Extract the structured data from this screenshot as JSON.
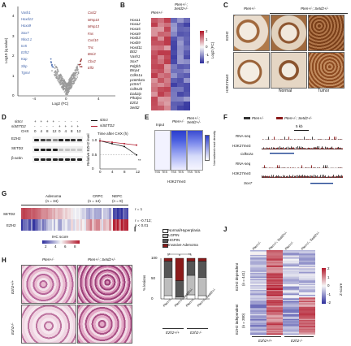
{
  "panels": [
    "A",
    "B",
    "C",
    "D",
    "E",
    "F",
    "G",
    "H",
    "I",
    "J"
  ],
  "A": {
    "ylabel": "Log10 (q value)",
    "xlabel": "Log2 (FC)",
    "yticks": [
      "0",
      "1",
      "2",
      "3",
      "4"
    ],
    "xticks": [
      "-4",
      "0",
      "4"
    ],
    "down_genes": [
      "Vash1",
      "Hoxd13",
      "Hoxa9",
      "Sox7",
      "Nkx3.1",
      "Irx5",
      "Ezh2",
      "Kap",
      "Sbp",
      "Tgm4"
    ],
    "up_genes": [
      "Cxcl2",
      "Mmp10",
      "Mmp13",
      "Fas",
      "Cxcl10",
      "Tnc",
      "Bmi3",
      "Cbx2",
      "Elf3"
    ]
  },
  "B": {
    "col_labels": [
      "Pten+/-",
      "Pten+/-; Setd2+/-"
    ],
    "genes": [
      "Hoxa1",
      "Hoxa2",
      "Hoxa5",
      "Hoxa9",
      "Hoxb3",
      "Hoxb9",
      "Hoxd11",
      "Bcl2",
      "Vash1",
      "Sox7",
      "Pdgfrb",
      "Bmp4",
      "Cdkn1a",
      "p16Ink4a",
      "p19Arf",
      "Cdkn2b",
      "Dab2ip",
      "Pik3ip1",
      "Ezh2",
      "Setd2"
    ],
    "legend_title": "Log2 (FC)",
    "legend_ticks": [
      "2",
      "1",
      "0",
      "-1",
      "-2"
    ],
    "colors": {
      "high": "#b2182b",
      "mid": "#f7f7f7",
      "low": "#2c2d9c"
    }
  },
  "C": {
    "col1": "Pten+/-",
    "col2": "Pten+/-; Setd2+/-",
    "row1": "EZH2",
    "row2": "H3K27me3",
    "sub1": "Normal",
    "sub2": "Tumor"
  },
  "D": {
    "sicontrol": "siScr",
    "sisetd2": "siSETD2",
    "row_siscr": "siScr",
    "row_sisetd2": "siSETD2",
    "row_chx": "CHX",
    "chx_values": [
      "0",
      "4",
      "8",
      "12",
      "0",
      "4",
      "8",
      "12"
    ],
    "plus": "+",
    "minus": "-",
    "blots": [
      "EZH2",
      "SETD2",
      "β-actin"
    ],
    "plot_ylabel": "Relative EZH2 level",
    "plot_xlabel": "Time after CHX (h)",
    "xticks": [
      "0",
      "4",
      "8",
      "12"
    ],
    "yticks": [
      "0",
      "0.5",
      "1.0"
    ],
    "sig": "**"
  },
  "E": {
    "col1": "Input",
    "col2": "Pten+/-",
    "col3": "Pten+/-; Setd2+/-",
    "tss_tes": [
      "TSS",
      "TES",
      "TSS",
      "TES",
      "TSS",
      "TES"
    ],
    "xlabel": "H3K27me3",
    "legend": "Normalized read density"
  },
  "F": {
    "legend1": "Pten+/-",
    "legend2": "Pten+/-; Setd2+/-",
    "scale": "5 kb",
    "tracks": [
      "RNA-seq",
      "H3K27me3",
      "RNA-seq",
      "H3K27me3"
    ],
    "gene1": "Cdkn2a",
    "gene2": "Sox7",
    "colors": {
      "ctrl": "#333333",
      "mut": "#8b1a1a"
    }
  },
  "G": {
    "groups": [
      "Adenoma",
      "CRPC",
      "NEPC"
    ],
    "group_n": [
      "(n = 34)",
      "(n = 14)",
      "(n = 8)"
    ],
    "rows": [
      "SETD2",
      "EZH2"
    ],
    "legend_title": "IHC score",
    "legend_ticks": [
      "2",
      "4",
      "6",
      "8"
    ],
    "stats1": "r = 1",
    "stats2": "r = -0.712;",
    "stats3": "p < 0.01"
  },
  "H": {
    "col1": "Pten+/-",
    "col2": "Pten+/-; Setd2+/-",
    "row1": "Ezh2+/+",
    "row2": "Ezh2-/-"
  },
  "I": {
    "legend": [
      "Normal/Hyperplasia",
      "LGPIN",
      "HGPIN",
      "Invasive Adenoma"
    ],
    "legend_colors": [
      "#ffffff",
      "#bdbdbd",
      "#555555",
      "#8b1a1a"
    ],
    "ylabel": "% lesions",
    "yticks": [
      "0",
      "50",
      "100"
    ],
    "sig": [
      "**",
      "**"
    ],
    "bar_labels": [
      "Pten+/-",
      "Pten+/-; Setd2+/-",
      "Pten+/-",
      "Pten+/-; Setd2+/-"
    ],
    "group_labels": [
      "Ezh2+/+",
      "Ezh2-/-"
    ]
  },
  "J": {
    "col_labels": [
      "Pten+/-",
      "Pten+/-; Setd2+/-",
      "Pten+/-",
      "Pten+/-; Setd2+/-"
    ],
    "row_group1": "EZH2 dependent",
    "row_group1_n": "(n = 441)",
    "row_group2": "EZH2 independent",
    "row_group2_n": "(n = 350)",
    "legend_title": "Z-score",
    "legend_ticks": [
      "2",
      "1",
      "0",
      "-1",
      "-2"
    ],
    "bottom1": "Ezh2+/+",
    "bottom2": "Ezh2-/-"
  },
  "chart_data": [
    {
      "type": "scatter",
      "xlabel": "Log2 (FC)",
      "ylabel": "Log10 (q value)",
      "xlim": [
        -6,
        6
      ],
      "ylim": [
        0,
        4.5
      ],
      "note": "volcano plot"
    },
    {
      "type": "line",
      "xlabel": "Time after CHX (h)",
      "ylabel": "Relative EZH2 level",
      "x": [
        0,
        4,
        8,
        12
      ],
      "series": [
        {
          "name": "siScr",
          "values": [
            1.0,
            0.9,
            0.8,
            0.5
          ]
        },
        {
          "name": "siSETD2",
          "values": [
            1.0,
            0.95,
            0.9,
            0.85
          ]
        }
      ],
      "ylim": [
        0,
        1.1
      ]
    },
    {
      "type": "bar",
      "ylabel": "% lesions",
      "categories": [
        "Pten+/-",
        "Pten+/-; Setd2+/-",
        "Pten+/-",
        "Pten+/-; Setd2+/-"
      ],
      "series": [
        {
          "name": "Normal/Hyperplasia",
          "values": [
            8,
            0,
            10,
            8
          ]
        },
        {
          "name": "LGPIN",
          "values": [
            45,
            5,
            48,
            45
          ]
        },
        {
          "name": "HGPIN",
          "values": [
            40,
            40,
            35,
            40
          ]
        },
        {
          "name": "Invasive Adenoma",
          "values": [
            7,
            55,
            7,
            7
          ]
        }
      ],
      "ylim": [
        0,
        100
      ]
    }
  ]
}
